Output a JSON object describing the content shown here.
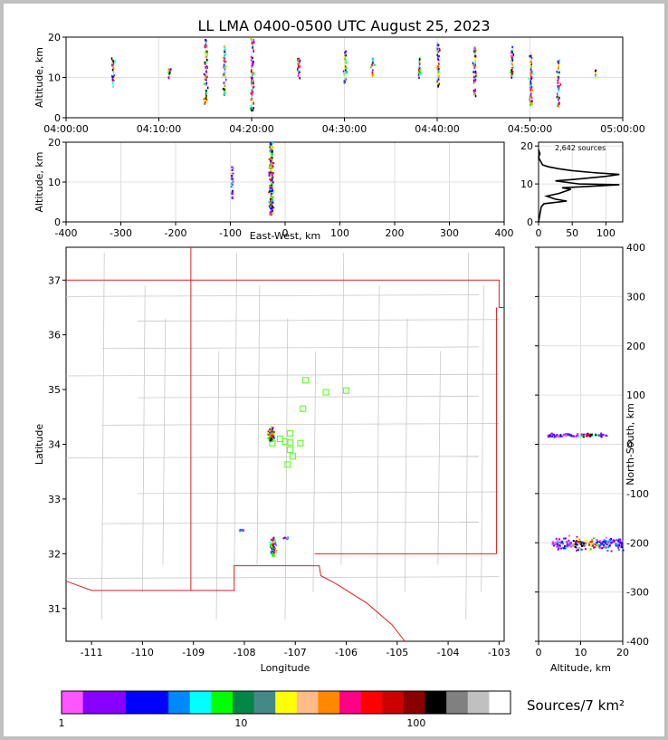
{
  "title": "LL LMA 0400-0500 UTC August 25, 2023",
  "colors": {
    "state_border": "#e02020",
    "county_border": "#c8c8c8",
    "station": "#66ff33",
    "grid": "#e0e0e0"
  },
  "colorbar": {
    "label": "Sources/7 km²",
    "ticks": [
      "1",
      "10",
      "100"
    ],
    "colors": [
      "#ff55ff",
      "#8800ff",
      "#8800ff",
      "#0000ff",
      "#0000ff",
      "#0088ff",
      "#00ffff",
      "#00ff00",
      "#008844",
      "#448888",
      "#ffff00",
      "#ffbb88",
      "#ff8800",
      "#ff0088",
      "#ff0000",
      "#cc0000",
      "#880000",
      "#000000",
      "#808080",
      "#c0c0c0",
      "#ffffff"
    ]
  },
  "chart_data": [
    {
      "type": "scatter",
      "panel": "time-altitude",
      "xlabel": "",
      "ylabel": "Altitude, km",
      "xticks": [
        "04:00:00",
        "04:10:00",
        "04:20:00",
        "04:30:00",
        "04:40:00",
        "04:50:00",
        "05:00:00"
      ],
      "xlim": [
        "04:00:00",
        "05:00:00"
      ],
      "ylim": [
        0,
        20
      ],
      "yticks": [
        0,
        10,
        20
      ],
      "grid": true,
      "clusters": [
        {
          "t": "04:05",
          "alt": [
            8,
            15
          ]
        },
        {
          "t": "04:11",
          "alt": [
            10,
            13
          ]
        },
        {
          "t": "04:15",
          "alt": [
            3,
            20
          ]
        },
        {
          "t": "04:17",
          "alt": [
            6,
            18
          ]
        },
        {
          "t": "04:20",
          "alt": [
            2,
            20
          ]
        },
        {
          "t": "04:25",
          "alt": [
            10,
            15
          ]
        },
        {
          "t": "04:30",
          "alt": [
            9,
            17
          ]
        },
        {
          "t": "04:33",
          "alt": [
            10,
            15
          ]
        },
        {
          "t": "04:38",
          "alt": [
            10,
            16
          ]
        },
        {
          "t": "04:40",
          "alt": [
            8,
            19
          ]
        },
        {
          "t": "04:44",
          "alt": [
            5,
            18
          ]
        },
        {
          "t": "04:48",
          "alt": [
            10,
            18
          ]
        },
        {
          "t": "04:50",
          "alt": [
            3,
            16
          ]
        },
        {
          "t": "04:53",
          "alt": [
            3,
            15
          ]
        },
        {
          "t": "04:57",
          "alt": [
            10,
            12
          ]
        }
      ]
    },
    {
      "type": "scatter",
      "panel": "east-west-altitude",
      "xlabel": "East-West, km",
      "ylabel": "Altitude, km",
      "xlim": [
        -400,
        400
      ],
      "xticks": [
        -400,
        -300,
        -200,
        -100,
        0,
        100,
        200,
        300,
        400
      ],
      "ylim": [
        0,
        20
      ],
      "yticks": [
        0,
        10,
        20
      ],
      "clusters": [
        {
          "x": -98,
          "alt": [
            6,
            14
          ]
        },
        {
          "x": -27,
          "alt": [
            2,
            20
          ]
        }
      ]
    },
    {
      "type": "line",
      "panel": "altitude-histogram",
      "annotation": "2,642 sources",
      "xlim": [
        0,
        125
      ],
      "xticks": [
        0,
        50,
        100
      ],
      "ylim": [
        0,
        21
      ],
      "yticks": [
        0,
        10,
        20
      ],
      "points": [
        [
          0,
          0
        ],
        [
          2,
          2
        ],
        [
          4,
          4
        ],
        [
          8,
          4.8
        ],
        [
          42,
          5.5
        ],
        [
          25,
          6
        ],
        [
          12,
          6.8
        ],
        [
          30,
          7.5
        ],
        [
          48,
          8.6
        ],
        [
          35,
          9
        ],
        [
          90,
          9.5
        ],
        [
          120,
          9.8
        ],
        [
          60,
          10
        ],
        [
          25,
          10.8
        ],
        [
          60,
          11.3
        ],
        [
          100,
          12
        ],
        [
          120,
          12.5
        ],
        [
          80,
          13
        ],
        [
          50,
          13.5
        ],
        [
          30,
          14
        ],
        [
          15,
          14.5
        ],
        [
          6,
          15
        ],
        [
          3,
          16
        ],
        [
          0,
          17
        ],
        [
          2,
          18
        ],
        [
          0,
          19
        ]
      ]
    },
    {
      "type": "scatter",
      "panel": "plan-view",
      "xlabel": "Longitude",
      "ylabel": "Latitude",
      "xlim": [
        -111.5,
        -102.9
      ],
      "ylim": [
        30.4,
        37.6
      ],
      "xticks": [
        -111,
        -110,
        -109,
        -108,
        -107,
        -106,
        -105,
        -104,
        -103
      ],
      "yticks": [
        31,
        32,
        33,
        34,
        35,
        36,
        37
      ],
      "stations": [
        [
          -106.8,
          35.17
        ],
        [
          -106.4,
          34.95
        ],
        [
          -106.0,
          34.98
        ],
        [
          -106.85,
          34.65
        ],
        [
          -107.1,
          34.2
        ],
        [
          -107.3,
          34.1
        ],
        [
          -107.2,
          34.05
        ],
        [
          -107.45,
          34.02
        ],
        [
          -107.1,
          34.03
        ],
        [
          -106.9,
          34.02
        ],
        [
          -107.1,
          33.9
        ],
        [
          -107.05,
          33.78
        ],
        [
          -107.15,
          33.63
        ]
      ],
      "clusters": [
        {
          "lon": -107.5,
          "lat": 34.2,
          "count": "high"
        },
        {
          "lon": -107.45,
          "lat": 32.15,
          "count": "high"
        },
        {
          "lon": -108.1,
          "lat": 32.45,
          "count": "low"
        },
        {
          "lon": -107.2,
          "lat": 32.3,
          "count": "low"
        }
      ]
    },
    {
      "type": "scatter",
      "panel": "north-south-altitude",
      "xlabel": "Altitude, km",
      "ylabel": "North-South, km",
      "xlim": [
        0,
        20
      ],
      "xticks": [
        0,
        10,
        20
      ],
      "ylim": [
        -400,
        400
      ],
      "yticks": [
        -400,
        -300,
        -200,
        -100,
        0,
        100,
        200,
        300,
        400
      ],
      "clusters": [
        {
          "ns": 20,
          "alt": [
            2,
            16
          ]
        },
        {
          "ns": -200,
          "alt": [
            3,
            20
          ]
        }
      ]
    }
  ]
}
